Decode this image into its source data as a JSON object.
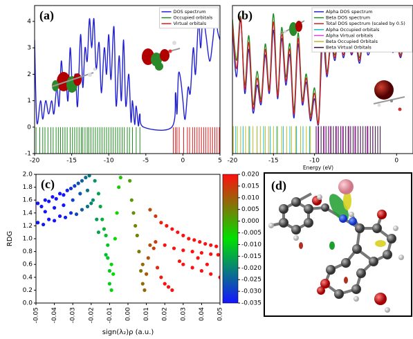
{
  "chart_data": [
    {
      "type": "line",
      "title": "(a)",
      "xlim": [
        -20,
        5
      ],
      "ylim": [
        -1,
        4.6
      ],
      "xticks": [
        -20,
        -15,
        -10,
        -5,
        0,
        5
      ],
      "yticks": [
        -1,
        0,
        1,
        2,
        3,
        4
      ],
      "legend": "upper right",
      "x": [
        -20,
        -19.7,
        -19.2,
        -18.9,
        -18.5,
        -18.1,
        -17.7,
        -17.4,
        -17,
        -16.7,
        -16.4,
        -16.1,
        -15.8,
        -15.5,
        -15.2,
        -14.9,
        -14.5,
        -14.2,
        -13.8,
        -13.5,
        -13.2,
        -12.9,
        -12.6,
        -12.3,
        -12,
        -11.7,
        -11.3,
        -11,
        -10.6,
        -10.3,
        -10,
        -9.7,
        -9.3,
        -9,
        -8.6,
        -8.3,
        -8,
        -7.7,
        -7.3,
        -7,
        -6.8,
        -6.5,
        -6.3,
        -6,
        -5.8,
        -5.3,
        -1.5,
        -1,
        -0.8,
        -0.6,
        -0.3,
        0,
        0.3,
        0.7,
        1,
        1.4,
        1.7,
        2.1,
        2.4,
        2.7,
        3.1,
        3.6,
        4,
        4.4,
        4.7,
        5
      ],
      "series": [
        {
          "name": "DOS spectrum",
          "color": "#1f1fd6",
          "values": [
            3.3,
            0.2,
            1,
            0.3,
            1,
            0.5,
            1,
            0.5,
            1.5,
            0.8,
            2.5,
            1.4,
            2,
            1,
            3,
            1.5,
            2,
            0.8,
            3.5,
            1.5,
            3,
            2.5,
            4.1,
            3,
            4.1,
            2.2,
            3.2,
            1.3,
            3,
            2,
            3.5,
            1.8,
            3.8,
            0.8,
            2.7,
            1,
            3.3,
            0.8,
            2,
            0.2,
            1,
            0.1,
            0.8,
            0.05,
            0.5,
            0,
            0,
            1.3,
            0.5,
            2,
            1.8,
            1,
            0.3,
            1.5,
            1.3,
            3,
            2,
            4,
            3,
            4.2,
            3.5,
            2.5,
            3.2,
            4.2,
            3.6,
            3.3
          ]
        }
      ],
      "orbitals": [
        {
          "name": "Occupied orbitals",
          "color": "#1e8c1e",
          "x": [
            -19.8,
            -19.3,
            -18.9,
            -18.6,
            -18.2,
            -17.8,
            -17.5,
            -17.1,
            -16.8,
            -16.5,
            -16.2,
            -15.9,
            -15.6,
            -15.2,
            -14.9,
            -14.6,
            -14.3,
            -14.0,
            -13.7,
            -13.5,
            -13.2,
            -12.9,
            -12.7,
            -12.4,
            -12.1,
            -11.8,
            -11.5,
            -11.2,
            -10.9,
            -10.6,
            -10.3,
            -10.0,
            -9.7,
            -9.4,
            -9.1,
            -8.8,
            -8.5,
            -8.2,
            -7.9,
            -7.5,
            -7.2,
            -6.8,
            -6.3,
            -5.8
          ]
        },
        {
          "name": "Virtual orbitals",
          "color": "#e31a1c",
          "x": [
            -1.3,
            -1.0,
            -0.8,
            -0.5,
            0.1,
            0.6,
            0.9,
            1.3,
            1.6,
            1.9,
            2.2,
            2.5,
            2.8,
            3.1,
            3.4,
            3.7,
            4.0,
            4.3,
            4.6,
            4.9
          ]
        }
      ]
    },
    {
      "type": "line",
      "title": "(b)",
      "x_label": "Energy (eV)",
      "xlim": [
        -20,
        2
      ],
      "ylim": [
        -1,
        4.4
      ],
      "xticks": [
        -20,
        -15,
        -10,
        0
      ],
      "legend": "upper right",
      "x": [
        -20,
        -19.5,
        -19,
        -18.5,
        -18,
        -17.5,
        -17,
        -16.5,
        -16,
        -15.5,
        -15,
        -14.5,
        -14,
        -13.5,
        -13,
        -12.5,
        -12,
        -11.5,
        -11,
        -10.5,
        -10,
        -9.5,
        -9,
        -8.5,
        -8,
        -7.5,
        -7,
        -6.5,
        -6,
        -5.5,
        -5,
        -4.5,
        -4,
        -3.5,
        -3,
        -2.5,
        -2,
        -1.5,
        -1,
        -0.5,
        0,
        0.5,
        1,
        1.5,
        2
      ],
      "series": [
        {
          "name": "Alpha DOS spectrum",
          "color": "#2323c8",
          "values": [
            3.6,
            1.8,
            3.9,
            1.2,
            2.8,
            0.5,
            1.5,
            0.8,
            2.6,
            1.2,
            3.5,
            1.0,
            3.2,
            1.5,
            2.6,
            0.3,
            3.0,
            0.8,
            1.6,
            0.2,
            1.0,
            0.1,
            3.2,
            1.8,
            3.0,
            2.4,
            3.6,
            2.5,
            3.2,
            2.6,
            3.0,
            2.3,
            3.4,
            2.6,
            3.0,
            2.8,
            3.2,
            2.9,
            3.6,
            2.7,
            3.0,
            2.5,
            3.2,
            2.8,
            3.4
          ]
        },
        {
          "name": "Beta DOS spectrum",
          "color": "#1e8c1e",
          "values": [
            3.9,
            2.4,
            4.0,
            1.5,
            3.3,
            0.8,
            2.0,
            1.0,
            3.0,
            1.4,
            4.1,
            1.2,
            3.6,
            1.8,
            3.0,
            0.6,
            3.4,
            1.0,
            1.9,
            0.4,
            1.4,
            0.2,
            4.2,
            2.0,
            3.2,
            2.6,
            3.8,
            2.7,
            3.4,
            2.7,
            3.2,
            2.5,
            3.6,
            2.8,
            3.2,
            3.0,
            3.4,
            3.0,
            3.9,
            2.8,
            3.2,
            2.6,
            3.4,
            3.0,
            3.6
          ]
        },
        {
          "name": "Total DOS spectrum (scaled by 0.5)",
          "color": "#d62020",
          "values": [
            3.75,
            2.1,
            3.95,
            1.35,
            3.05,
            0.65,
            1.75,
            0.9,
            2.8,
            1.3,
            3.8,
            1.1,
            3.4,
            1.65,
            2.8,
            0.45,
            3.2,
            0.9,
            1.75,
            0.3,
            1.2,
            0.15,
            3.7,
            1.9,
            3.1,
            2.5,
            3.7,
            2.6,
            3.3,
            2.65,
            3.1,
            2.4,
            3.5,
            2.7,
            3.1,
            2.9,
            3.3,
            2.95,
            3.75,
            2.75,
            3.1,
            2.55,
            3.3,
            2.9,
            3.5
          ]
        }
      ],
      "orbitals": [
        {
          "name": "Alpha Occupied orbitals",
          "color": "#17becf",
          "x": [
            -19.6,
            -18.7,
            -17.9,
            -17.0,
            -16.2,
            -15.4,
            -14.6,
            -13.8,
            -13.0,
            -12.2,
            -11.4,
            -10.6
          ]
        },
        {
          "name": "Alpha Virtual orbitals",
          "color": "#e040e0",
          "x": [
            -9.6,
            -8.8,
            -8.1,
            -7.3,
            -6.6,
            -5.8,
            -5.1,
            -4.4,
            -3.6,
            -2.9
          ]
        },
        {
          "name": "Beta Occupied Orbitals",
          "color": "#bcbd22",
          "x": [
            -19.9,
            -19.4,
            -19.0,
            -18.4,
            -18.0,
            -17.5,
            -17.0,
            -16.6,
            -16.0,
            -15.6,
            -15.0,
            -14.5,
            -14.0,
            -13.4,
            -12.8,
            -12.3,
            -11.7,
            -11.0,
            -10.5
          ]
        },
        {
          "name": "Beta Virtual Orbitals",
          "color": "#3a0a40",
          "x": [
            -9.8,
            -9.5,
            -9.2,
            -8.9,
            -8.6,
            -8.3,
            -8.0,
            -7.7,
            -7.4,
            -7.1,
            -6.8,
            -6.5,
            -6.2,
            -5.9,
            -5.6,
            -5.3,
            -5.0,
            -4.7,
            -4.4,
            -4.1,
            -3.8,
            -3.5,
            -3.2,
            -2.9,
            -2.6,
            -2.3,
            -2.0
          ]
        }
      ]
    },
    {
      "type": "scatter",
      "title": "(c)",
      "x_label": "sign(λ₂)ρ (a.u.)",
      "y_label": "RDG",
      "xlim": [
        -0.05,
        0.05
      ],
      "ylim": [
        0,
        2
      ],
      "xticks": [
        -0.05,
        -0.04,
        -0.03,
        -0.02,
        -0.01,
        {
          "value": 0,
          "label": "0.00"
        },
        0.01,
        0.02,
        0.03,
        0.04,
        0.05
      ],
      "yticks": [
        {
          "value": 0,
          "label": "0.0"
        },
        0.2,
        0.4,
        0.6,
        0.8,
        {
          "value": 1,
          "label": "1.0"
        },
        1.2,
        1.4,
        1.6,
        1.8,
        {
          "value": 2,
          "label": "2.0"
        }
      ],
      "colorbar": {
        "lim": [
          -0.035,
          0.02
        ],
        "colors": [
          "#1414ff",
          "#00e000",
          "#ff1010"
        ],
        "ticks": [
          {
            "value": 0.02,
            "label": "0.020"
          },
          0.015,
          {
            "value": 0.01,
            "label": "0.010"
          },
          0.005,
          {
            "value": 0,
            "label": "0.000"
          },
          -0.005,
          {
            "value": -0.01,
            "label": "-0.010"
          },
          -0.015,
          {
            "value": -0.02,
            "label": "-0.020"
          },
          -0.025,
          {
            "value": -0.03,
            "label": "-0.030"
          },
          -0.035
        ]
      },
      "x": [
        -0.049,
        -0.047,
        -0.045,
        -0.043,
        -0.041,
        -0.039,
        -0.037,
        -0.035,
        -0.033,
        -0.031,
        -0.029,
        -0.027,
        -0.025,
        -0.023,
        -0.021,
        -0.049,
        -0.046,
        -0.043,
        -0.04,
        -0.037,
        -0.034,
        -0.031,
        -0.028,
        -0.025,
        -0.022,
        -0.02,
        -0.045,
        -0.04,
        -0.035,
        -0.03,
        -0.026,
        -0.022,
        -0.018,
        -0.016,
        -0.015,
        -0.014,
        -0.013,
        -0.012,
        -0.011,
        -0.011,
        -0.01,
        -0.01,
        -0.009,
        -0.009,
        -0.012,
        -0.008,
        -0.007,
        -0.006,
        -0.005,
        -0.004,
        -0.017,
        -0.016,
        -0.019,
        0.001,
        0.002,
        0.003,
        0.004,
        0.005,
        0.006,
        0.007,
        0.008,
        0.008,
        0.009,
        0.01,
        0.011,
        0.012,
        0.014,
        0.016,
        0.018,
        0.02,
        0.022,
        0.024,
        0.012,
        0.015,
        0.018,
        0.021,
        0.024,
        0.027,
        0.03,
        0.033,
        0.036,
        0.039,
        0.042,
        0.045,
        0.048,
        0.015,
        0.02,
        0.025,
        0.03,
        0.035,
        0.04,
        0.045,
        0.049,
        0.03,
        0.035,
        0.04,
        0.045,
        0.05,
        0.028,
        0.038,
        0.043
      ],
      "values": [
        1.55,
        1.5,
        1.6,
        1.58,
        1.65,
        1.62,
        1.7,
        1.68,
        1.75,
        1.78,
        1.82,
        1.86,
        1.9,
        1.95,
        1.98,
        1.25,
        1.22,
        1.3,
        1.28,
        1.35,
        1.33,
        1.4,
        1.38,
        1.45,
        1.5,
        1.55,
        1.42,
        1.48,
        1.52,
        1.6,
        1.7,
        1.75,
        1.9,
        1.7,
        1.5,
        1.3,
        1.15,
        1.05,
        0.9,
        0.7,
        0.5,
        0.3,
        0.6,
        0.2,
        0.75,
        0.45,
        1.0,
        1.4,
        1.8,
        1.95,
        1.3,
        1.1,
        1.6,
        1.9,
        1.6,
        1.4,
        1.2,
        1.05,
        0.8,
        0.5,
        0.3,
        0.6,
        0.2,
        0.45,
        0.7,
        0.9,
        0.85,
        0.55,
        0.4,
        0.3,
        0.25,
        0.2,
        1.45,
        1.35,
        1.25,
        1.2,
        1.15,
        1.1,
        1.05,
        1.0,
        0.98,
        0.95,
        0.92,
        0.9,
        0.88,
        0.95,
        0.9,
        0.85,
        0.82,
        0.8,
        0.78,
        0.76,
        0.75,
        0.6,
        0.55,
        0.5,
        0.45,
        0.4,
        0.65,
        0.7,
        0.6
      ]
    }
  ],
  "molecule_panel": {
    "label": "(d)"
  }
}
